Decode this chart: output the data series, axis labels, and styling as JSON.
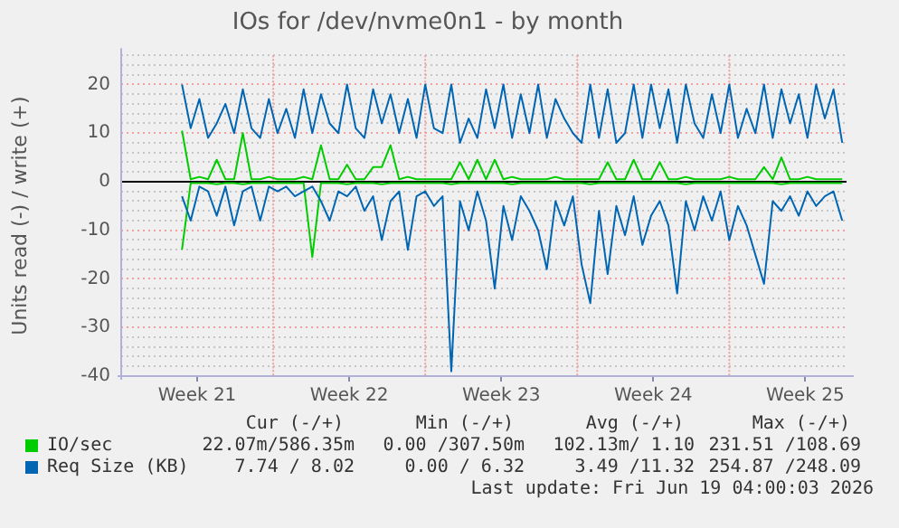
{
  "chart_data": {
    "type": "line",
    "title": "IOs for /dev/nvme0n1 - by month",
    "ylabel": "Units read (-) / write (+)",
    "x": [
      "2026-05-20T19:12",
      "2026-05-21T04:48",
      "2026-05-21T14:24",
      "2026-05-22T00:00",
      "2026-05-22T09:36",
      "2026-05-22T19:12",
      "2026-05-23T04:48",
      "2026-05-23T14:24",
      "2026-05-24T00:00",
      "2026-05-24T09:36",
      "2026-05-24T19:12",
      "2026-05-25T04:48",
      "2026-05-25T14:24",
      "2026-05-26T00:00",
      "2026-05-26T09:36",
      "2026-05-26T19:12",
      "2026-05-27T04:48",
      "2026-05-27T14:24",
      "2026-05-28T00:00",
      "2026-05-28T09:36",
      "2026-05-28T19:12",
      "2026-05-29T04:48",
      "2026-05-29T14:24",
      "2026-05-30T00:00",
      "2026-05-30T09:36",
      "2026-05-30T19:12",
      "2026-05-31T04:48",
      "2026-05-31T14:24",
      "2026-06-01T00:00",
      "2026-06-01T09:36",
      "2026-06-01T19:12",
      "2026-06-02T04:48",
      "2026-06-02T14:24",
      "2026-06-03T00:00",
      "2026-06-03T09:36",
      "2026-06-03T19:12",
      "2026-06-04T04:48",
      "2026-06-04T14:24",
      "2026-06-05T00:00",
      "2026-06-05T09:36",
      "2026-06-05T19:12",
      "2026-06-06T04:48",
      "2026-06-06T14:24",
      "2026-06-07T00:00",
      "2026-06-07T09:36",
      "2026-06-07T19:12",
      "2026-06-08T04:48",
      "2026-06-08T14:24",
      "2026-06-09T00:00",
      "2026-06-09T09:36",
      "2026-06-09T19:12",
      "2026-06-10T04:48",
      "2026-06-10T14:24",
      "2026-06-11T00:00",
      "2026-06-11T09:36",
      "2026-06-11T19:12",
      "2026-06-12T04:48",
      "2026-06-12T14:24",
      "2026-06-13T00:00",
      "2026-06-13T09:36",
      "2026-06-13T19:12",
      "2026-06-14T04:48",
      "2026-06-14T14:24",
      "2026-06-15T00:00",
      "2026-06-15T09:36",
      "2026-06-15T19:12",
      "2026-06-16T04:48",
      "2026-06-16T14:24",
      "2026-06-17T00:00",
      "2026-06-17T09:36",
      "2026-06-17T19:12",
      "2026-06-18T04:48",
      "2026-06-18T14:24",
      "2026-06-19T00:00",
      "2026-06-19T09:36",
      "2026-06-19T19:12",
      "2026-06-20T04:48"
    ],
    "series": [
      {
        "color": "#0066b3",
        "values": [
          -3,
          -8,
          -1,
          -2,
          -7,
          -1,
          -9,
          -2,
          -1,
          -8,
          -1,
          -2,
          -1,
          -3,
          -2,
          -1,
          -4,
          -8,
          -2,
          -3,
          -1,
          -6,
          -3,
          -12,
          -4,
          -2,
          -14,
          -3,
          -2,
          -5,
          -3,
          -39,
          -4,
          -10,
          -2,
          -8,
          -22,
          -5,
          -12,
          -3,
          -6,
          -10,
          -18,
          -4,
          -9,
          -3,
          -17,
          -25,
          -6,
          -19,
          -5,
          -11,
          -3,
          -13,
          -7,
          -4,
          -9,
          -23,
          -4,
          -10,
          -3,
          -8,
          -2,
          -12,
          -5,
          -9,
          -15,
          -21,
          -4,
          -6,
          -3,
          -7,
          -2,
          -5,
          -3,
          -2,
          -8
        ]
      },
      {
        "color": "#00cc00",
        "values": [
          -14,
          -0.3,
          -0.3,
          -0.3,
          -0.5,
          -0.3,
          -0.3,
          -0.5,
          -0.3,
          -0.3,
          -0.3,
          -0.3,
          -0.3,
          -0.3,
          -0.3,
          -15.5,
          -0.3,
          -0.3,
          -0.3,
          -0.5,
          -0.3,
          -0.3,
          -0.3,
          -0.5,
          -0.3,
          -0.3,
          -0.3,
          -0.3,
          -0.3,
          -0.3,
          -0.3,
          -0.5,
          -0.3,
          -0.3,
          -0.3,
          -0.3,
          -0.3,
          -0.3,
          -0.5,
          -0.3,
          -0.3,
          -0.3,
          -0.3,
          -0.3,
          -0.3,
          -0.3,
          -0.3,
          -0.5,
          -0.3,
          -0.3,
          -0.3,
          -0.3,
          -0.3,
          -0.3,
          -0.3,
          -0.3,
          -0.3,
          -0.3,
          -0.5,
          -0.3,
          -0.3,
          -0.3,
          -0.3,
          -0.3,
          -0.3,
          -0.3,
          -0.3,
          -0.3,
          -0.3,
          -0.5,
          -0.3,
          -0.3,
          -0.3,
          -0.3,
          -0.3,
          -0.3,
          -0.3
        ]
      },
      {
        "name": "Req Size (KB)",
        "color": "#0066b3",
        "values": [
          20,
          11,
          17,
          9,
          12,
          16,
          10,
          19,
          11,
          9,
          17,
          10,
          15,
          9,
          19,
          10,
          18,
          12,
          10,
          20,
          11,
          9,
          19,
          12,
          18,
          10,
          17,
          9,
          20,
          11,
          10,
          20,
          8,
          13,
          9,
          19,
          11,
          20,
          9,
          18,
          10,
          20,
          9,
          17,
          13,
          10,
          8,
          20,
          9,
          19,
          8,
          10,
          20,
          9,
          20,
          11,
          19,
          8,
          20,
          12,
          9,
          18,
          10,
          20,
          9,
          15,
          10,
          20,
          9,
          19,
          12,
          18,
          9,
          20,
          13,
          19,
          8
        ]
      },
      {
        "name": "IO/sec",
        "color": "#00cc00",
        "values": [
          10.5,
          0.5,
          1,
          0.5,
          4.5,
          0.5,
          0.5,
          10,
          0.5,
          0.5,
          1,
          0.5,
          0.5,
          0.5,
          1,
          0.5,
          7.5,
          0.5,
          0.5,
          3.5,
          0.5,
          0.5,
          3,
          3,
          7.5,
          0.5,
          1,
          0.5,
          0.5,
          0.5,
          0.5,
          0.5,
          4,
          0.5,
          4.5,
          0.5,
          4.5,
          0.5,
          1,
          0.5,
          0.5,
          0.5,
          0.5,
          1,
          0.5,
          0.5,
          0.5,
          0.5,
          0.5,
          4,
          0.5,
          0.5,
          4.5,
          0.5,
          0.5,
          4,
          0.5,
          0.5,
          1,
          0.5,
          0.5,
          0.5,
          0.5,
          1,
          0.5,
          0.5,
          0.5,
          3,
          0.5,
          5,
          0.5,
          0.5,
          1,
          0.5,
          0.5,
          0.5,
          0.5
        ]
      }
    ],
    "xlim": [
      "2026-05-18T00:00",
      "2026-06-20T09:36"
    ],
    "xticks": [
      {
        "value": "2026-05-21T12:00",
        "label": "Week 21"
      },
      {
        "value": "2026-05-28T12:00",
        "label": "Week 22"
      },
      {
        "value": "2026-06-04T12:00",
        "label": "Week 23"
      },
      {
        "value": "2026-06-11T12:00",
        "label": "Week 24"
      },
      {
        "value": "2026-06-18T12:00",
        "label": "Week 25"
      }
    ],
    "ylim": [
      -40,
      26
    ],
    "yticks": [
      -40,
      {
        "value": -38,
        "label": null
      },
      {
        "value": -36,
        "label": null
      },
      {
        "value": -34,
        "label": null
      },
      {
        "value": -32,
        "label": null
      },
      -30,
      {
        "value": -28,
        "label": null
      },
      {
        "value": -26,
        "label": null
      },
      {
        "value": -24,
        "label": null
      },
      {
        "value": -22,
        "label": null
      },
      -20,
      {
        "value": -18,
        "label": null
      },
      {
        "value": -16,
        "label": null
      },
      {
        "value": -14,
        "label": null
      },
      {
        "value": -12,
        "label": null
      },
      -10,
      {
        "value": -8,
        "label": null
      },
      {
        "value": -6,
        "label": null
      },
      {
        "value": -4,
        "label": null
      },
      {
        "value": -2,
        "label": null
      },
      0,
      {
        "value": 2,
        "label": null
      },
      {
        "value": 4,
        "label": null
      },
      {
        "value": 6,
        "label": null
      },
      {
        "value": 8,
        "label": null
      },
      10,
      {
        "value": 12,
        "label": null
      },
      {
        "value": 14,
        "label": null
      },
      {
        "value": 16,
        "label": null
      },
      {
        "value": 18,
        "label": null
      },
      20,
      {
        "value": 22,
        "label": null
      },
      {
        "value": 24,
        "label": null
      },
      {
        "value": 26,
        "label": null
      }
    ],
    "ref_lines": [
      {
        "axis": "x",
        "value": "2026-05-25",
        "color": "#f0a0a0",
        "line_style": "dotted"
      },
      {
        "axis": "x",
        "value": "2026-06-01",
        "color": "#f0a0a0",
        "line_style": "dotted"
      },
      {
        "axis": "x",
        "value": "2026-06-08",
        "color": "#f0a0a0",
        "line_style": "dotted"
      },
      {
        "axis": "x",
        "value": "2026-06-15",
        "color": "#f0a0a0",
        "line_style": "dotted"
      },
      {
        "axis": "y",
        "value": 0,
        "color": "#000000"
      }
    ],
    "grid": true,
    "legend": "bottom",
    "marker": "none",
    "line_style": "solid",
    "annotations": [
      "Cur (-/+)",
      "Min (-/+)",
      "Avg (-/+)",
      "Max (-/+)",
      "22.07m/586.35m",
      "0.00 /307.50m",
      "102.13m/ 1.10",
      "231.51 /108.69",
      "7.74 / 8.02",
      "0.00 / 6.32",
      "3.49 /11.32",
      "254.87 /248.09",
      "Last update: Fri Jun 19 04:00:03 2026"
    ]
  }
}
